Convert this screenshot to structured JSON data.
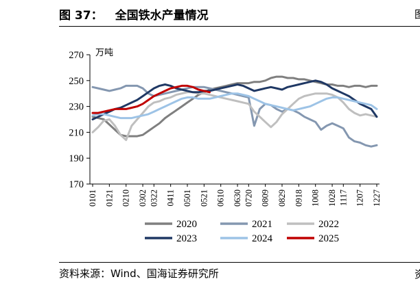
{
  "figure": {
    "number": "图 37：",
    "title": "全国铁水产量情况",
    "right_mark": "图",
    "right_mark_bottom": "资"
  },
  "source": "资料来源：Wind、国海证券研究所",
  "chart_data": {
    "type": "line",
    "title": "",
    "ylabel": "万吨",
    "xlabel": "",
    "ylim": [
      170,
      270
    ],
    "yticks": [
      170,
      190,
      210,
      230,
      250,
      270
    ],
    "grid": false,
    "legend_position": "bottom",
    "x_ticklabels": [
      "0101",
      "0121",
      "0210",
      "0302",
      "0322",
      "0411",
      "0501",
      "0521",
      "0610",
      "0630",
      "0720",
      "0809",
      "0829",
      "0918",
      "1008",
      "1028",
      "1117",
      "1207",
      "1227"
    ],
    "x_count": 52,
    "series": [
      {
        "name": "2020",
        "color": "#7f7f7f",
        "values": [
          222,
          221,
          220,
          216,
          212,
          208,
          207,
          207,
          207,
          208,
          211,
          214,
          217,
          221,
          224,
          227,
          230,
          233,
          236,
          239,
          241,
          243,
          244,
          245,
          246,
          247,
          248,
          248,
          248,
          249,
          249,
          250,
          252,
          253,
          253,
          252,
          252,
          251,
          251,
          250,
          249,
          248,
          247,
          247,
          246,
          246,
          245,
          246,
          246,
          245,
          246,
          246
        ]
      },
      {
        "name": "2021",
        "color": "#8497b0",
        "values": [
          245,
          244,
          243,
          242,
          243,
          244,
          246,
          246,
          246,
          244,
          240,
          238,
          239,
          240,
          241,
          242,
          243,
          244,
          245,
          245,
          245,
          244,
          243,
          242,
          241,
          240,
          239,
          238,
          237,
          215,
          228,
          232,
          231,
          228,
          226,
          228,
          227,
          225,
          222,
          220,
          218,
          212,
          215,
          217,
          215,
          213,
          206,
          203,
          202,
          200,
          199,
          200
        ]
      },
      {
        "name": "2022",
        "color": "#bfbfbf",
        "values": [
          210,
          214,
          219,
          220,
          215,
          208,
          204,
          215,
          220,
          225,
          230,
          233,
          234,
          236,
          237,
          239,
          240,
          241,
          241,
          240,
          240,
          239,
          238,
          237,
          236,
          235,
          234,
          233,
          232,
          226,
          222,
          218,
          214,
          218,
          224,
          228,
          232,
          236,
          238,
          239,
          240,
          240,
          240,
          239,
          237,
          233,
          228,
          225,
          223,
          224,
          223,
          222
        ]
      },
      {
        "name": "2023",
        "color": "#1f3864",
        "values": [
          220,
          222,
          224,
          226,
          228,
          229,
          231,
          233,
          235,
          238,
          241,
          244,
          246,
          247,
          246,
          244,
          243,
          242,
          241,
          241,
          242,
          242,
          243,
          244,
          245,
          246,
          247,
          246,
          244,
          242,
          243,
          244,
          245,
          244,
          243,
          245,
          246,
          247,
          248,
          249,
          250,
          249,
          247,
          244,
          242,
          240,
          238,
          235,
          232,
          230,
          228,
          222
        ]
      },
      {
        "name": "2024",
        "color": "#9dc3e6",
        "values": [
          223,
          224,
          224,
          223,
          222,
          221,
          221,
          221,
          222,
          223,
          224,
          226,
          228,
          230,
          232,
          234,
          236,
          237,
          237,
          236,
          236,
          236,
          237,
          238,
          239,
          240,
          240,
          239,
          238,
          236,
          234,
          232,
          231,
          230,
          229,
          228,
          227,
          228,
          229,
          230,
          232,
          234,
          236,
          237,
          237,
          236,
          235,
          234,
          233,
          232,
          231,
          228
        ]
      },
      {
        "name": "2025",
        "color": "#c00000",
        "values": [
          225,
          225,
          226,
          227,
          228,
          228,
          228,
          229,
          230,
          232,
          235,
          238,
          240,
          242,
          244,
          245,
          246,
          246,
          245,
          243,
          242,
          241
        ]
      }
    ]
  }
}
